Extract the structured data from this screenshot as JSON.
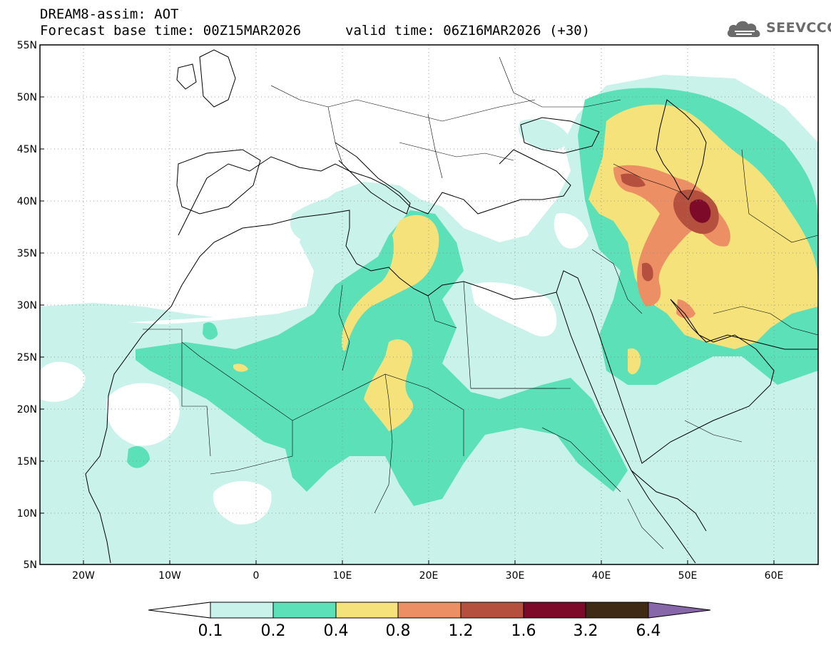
{
  "title": {
    "line1": "DREAM8-assim: AOT",
    "line2": "Forecast base time: 00Z15MAR2026",
    "valid": "valid time: 06Z16MAR2026 (+30)"
  },
  "logo": {
    "text": "SEEVCCC",
    "icon": "cloud-icon",
    "color": "#6b6b6b"
  },
  "map": {
    "lon_range": [
      -25,
      65
    ],
    "lat_range": [
      5,
      55
    ],
    "lat_ticks": [
      "55N",
      "50N",
      "45N",
      "40N",
      "35N",
      "30N",
      "25N",
      "20N",
      "15N",
      "10N",
      "5N"
    ],
    "lon_ticks": [
      "20W",
      "10W",
      "0",
      "10E",
      "20E",
      "30E",
      "40E",
      "50E",
      "60E"
    ],
    "grid": "dotted"
  },
  "colorbar": {
    "labels": [
      "0.1",
      "0.2",
      "0.4",
      "0.8",
      "1.2",
      "1.6",
      "3.2",
      "6.4"
    ],
    "colors": [
      "#c9f2ea",
      "#5ce0b8",
      "#f5e27a",
      "#ec8f65",
      "#b5503f",
      "#7c0a28",
      "#3f2a15"
    ],
    "lower_extend_color": "#ffffff",
    "upper_extend_color": "#8866aa"
  },
  "legend": {
    "c1": "#c9f2ea",
    "c2": "#5ce0b8",
    "c3": "#f5e27a",
    "c4": "#ec8f65",
    "c5": "#b5503f",
    "c6": "#7c0a28"
  }
}
